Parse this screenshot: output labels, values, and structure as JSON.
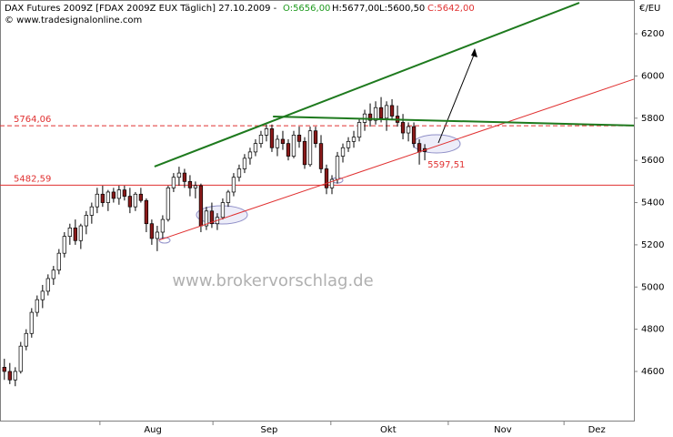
{
  "chart_data": {
    "type": "candlestick",
    "header": {
      "title": "DAX Futures 2009Z [FDAX 2009Z EUX  Täglich] 27.10.2009 -",
      "open": "O:5656,00",
      "high": "H:5677,00",
      "low": "L:5600,50",
      "close": "C:5642,00"
    },
    "copyright": "© www.tradesignalonline.com",
    "watermark": "www.brokervorschlag.de",
    "y_unit": "€/EU",
    "ylim": [
      4367,
      6360
    ],
    "yticks": [
      4600,
      4800,
      5000,
      5200,
      5400,
      5600,
      5800,
      6000,
      6200
    ],
    "xlim": [
      -0.8,
      115.3
    ],
    "xticks": [
      {
        "value": 27.2,
        "label": "Aug"
      },
      {
        "value": 48.5,
        "label": "Sep"
      },
      {
        "value": 70.3,
        "label": "Okt"
      },
      {
        "value": 91.3,
        "label": "Nov"
      },
      {
        "value": 108.5,
        "label": "Dez"
      }
    ],
    "xminorticks": [
      17.5,
      38.2,
      59.8,
      81.3,
      102.5
    ],
    "up_color": "#ffffff",
    "down_color": "#8b1a1a",
    "open": [
      4620,
      4600,
      4560,
      4600,
      4720,
      4780,
      4880,
      4940,
      4980,
      5040,
      5080,
      5160,
      5240,
      5280,
      5220,
      5290,
      5340,
      5380,
      5440,
      5400,
      5450,
      5420,
      5460,
      5430,
      5380,
      5440,
      5410,
      5300,
      5230,
      5260,
      5320,
      5470,
      5520,
      5540,
      5500,
      5470,
      5480,
      5290,
      5360,
      5300,
      5330,
      5400,
      5450,
      5520,
      5560,
      5610,
      5640,
      5680,
      5720,
      5750,
      5660,
      5700,
      5680,
      5620,
      5720,
      5690,
      5580,
      5740,
      5680,
      5560,
      5470,
      5510,
      5620,
      5660,
      5690,
      5710,
      5780,
      5820,
      5790,
      5850,
      5800,
      5860,
      5810,
      5780,
      5730,
      5760,
      5680,
      5656
    ],
    "high": [
      4660,
      4640,
      4620,
      4740,
      4800,
      4900,
      4960,
      5010,
      5060,
      5100,
      5180,
      5260,
      5300,
      5320,
      5300,
      5360,
      5400,
      5470,
      5480,
      5460,
      5470,
      5480,
      5480,
      5470,
      5450,
      5470,
      5420,
      5320,
      5290,
      5340,
      5480,
      5540,
      5570,
      5560,
      5530,
      5500,
      5490,
      5380,
      5400,
      5350,
      5420,
      5460,
      5540,
      5580,
      5630,
      5660,
      5700,
      5740,
      5770,
      5770,
      5720,
      5740,
      5700,
      5740,
      5760,
      5710,
      5760,
      5760,
      5720,
      5580,
      5530,
      5640,
      5680,
      5710,
      5740,
      5800,
      5840,
      5870,
      5880,
      5900,
      5880,
      5890,
      5860,
      5820,
      5780,
      5780,
      5700,
      5677
    ],
    "low": [
      4560,
      4540,
      4530,
      4590,
      4700,
      4760,
      4860,
      4900,
      4960,
      5010,
      5060,
      5140,
      5200,
      5200,
      5180,
      5250,
      5300,
      5350,
      5380,
      5360,
      5400,
      5390,
      5410,
      5350,
      5360,
      5400,
      5260,
      5200,
      5170,
      5230,
      5310,
      5450,
      5480,
      5470,
      5430,
      5420,
      5260,
      5270,
      5280,
      5270,
      5320,
      5380,
      5430,
      5500,
      5540,
      5580,
      5620,
      5660,
      5690,
      5640,
      5620,
      5650,
      5600,
      5610,
      5660,
      5560,
      5570,
      5660,
      5540,
      5440,
      5440,
      5490,
      5590,
      5640,
      5660,
      5690,
      5740,
      5760,
      5770,
      5780,
      5740,
      5790,
      5760,
      5700,
      5690,
      5660,
      5580,
      5600.5
    ],
    "close": [
      4600,
      4560,
      4600,
      4720,
      4780,
      4880,
      4940,
      4980,
      5040,
      5080,
      5160,
      5240,
      5280,
      5220,
      5290,
      5340,
      5380,
      5440,
      5400,
      5450,
      5420,
      5460,
      5430,
      5380,
      5440,
      5410,
      5300,
      5230,
      5260,
      5320,
      5470,
      5520,
      5540,
      5500,
      5470,
      5480,
      5290,
      5360,
      5300,
      5330,
      5400,
      5450,
      5520,
      5560,
      5610,
      5640,
      5680,
      5720,
      5750,
      5660,
      5700,
      5680,
      5620,
      5720,
      5690,
      5580,
      5740,
      5680,
      5560,
      5470,
      5510,
      5620,
      5660,
      5690,
      5710,
      5780,
      5820,
      5790,
      5850,
      5800,
      5860,
      5810,
      5780,
      5730,
      5760,
      5680,
      5640,
      5642
    ],
    "levels": [
      {
        "value": 5764.06,
        "label": "5764,06",
        "color": "#e03030",
        "dashed": true
      },
      {
        "value": 5482.59,
        "label": "5482,59",
        "color": "#e03030",
        "dashed": false
      }
    ],
    "trendlines": [
      {
        "color": "#1e7a1e",
        "width": 2,
        "x": [
          27.5,
          105.3
        ],
        "y": [
          5571,
          6347
        ]
      },
      {
        "color": "#e03030",
        "width": 1,
        "x": [
          28.3,
          115.3
        ],
        "y": [
          5222,
          5985
        ]
      },
      {
        "color": "#1e7a1e",
        "width": 2,
        "x": [
          49.2,
          115.3
        ],
        "y": [
          5808,
          5765
        ]
      }
    ],
    "annotation": {
      "value": 5597.51,
      "label": "5597,51",
      "x": 77.5
    }
  }
}
